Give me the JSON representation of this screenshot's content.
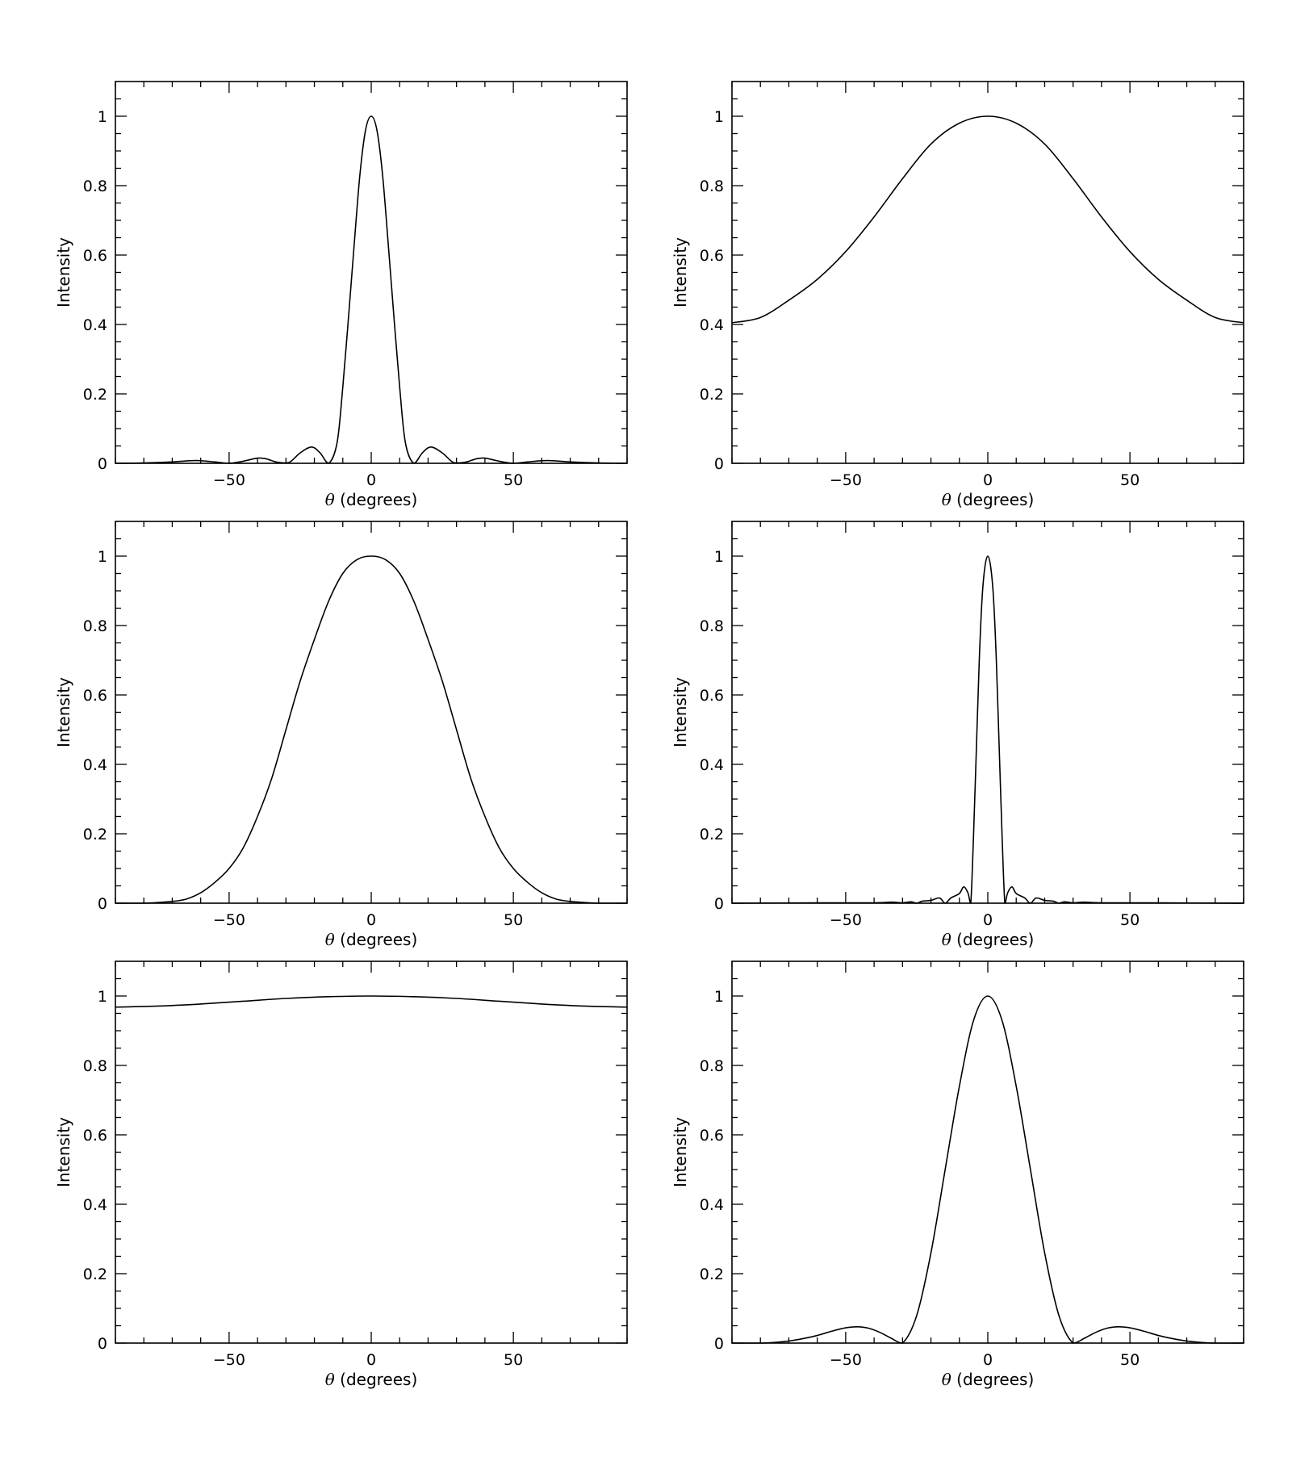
{
  "chart_data": [
    {
      "id": "panel-r1c1",
      "type": "line",
      "row": 1,
      "col": 1,
      "title": "",
      "xlabel_symbol": "θ",
      "xlabel": "(degrees)",
      "ylabel": "Intensity",
      "xlim": [
        -90,
        90
      ],
      "ylim": [
        0,
        1.1
      ],
      "xticks": [
        -50,
        0,
        50
      ],
      "xtick_labels": [
        "−50",
        "0",
        "50"
      ],
      "yticks": [
        0,
        0.2,
        0.4,
        0.6,
        0.8,
        1
      ],
      "ytick_labels": [
        "0",
        "0.2",
        "0.4",
        "0.6",
        "0.8",
        "1"
      ],
      "grid": false,
      "legend": false,
      "series": [
        {
          "x": [
            -90,
            -80,
            -70,
            -62,
            -55,
            -50,
            -45,
            -40,
            -37,
            -33,
            -29,
            -25,
            -21,
            -18,
            -15,
            -12,
            -10,
            -8,
            -6,
            -4,
            -2,
            0,
            2,
            4,
            6,
            8,
            10,
            12,
            15,
            18,
            21,
            25,
            29,
            33,
            37,
            40,
            45,
            50,
            55,
            62,
            70,
            80,
            90
          ],
          "y": [
            0,
            0.001,
            0.004,
            0.008,
            0.004,
            0,
            0.006,
            0.015,
            0.013,
            0.003,
            0.002,
            0.03,
            0.047,
            0.03,
            0,
            0.06,
            0.22,
            0.42,
            0.63,
            0.83,
            0.96,
            1,
            0.96,
            0.83,
            0.63,
            0.42,
            0.22,
            0.06,
            0,
            0.03,
            0.047,
            0.03,
            0.002,
            0.003,
            0.013,
            0.015,
            0.006,
            0,
            0.004,
            0.008,
            0.004,
            0.001,
            0
          ]
        }
      ]
    },
    {
      "id": "panel-r1c2",
      "type": "line",
      "row": 1,
      "col": 2,
      "title": "",
      "xlabel_symbol": "θ",
      "xlabel": "(degrees)",
      "ylabel": "Intensity",
      "xlim": [
        -90,
        90
      ],
      "ylim": [
        0,
        1.1
      ],
      "xticks": [
        -50,
        0,
        50
      ],
      "xtick_labels": [
        "−50",
        "0",
        "50"
      ],
      "yticks": [
        0,
        0.2,
        0.4,
        0.6,
        0.8,
        1
      ],
      "ytick_labels": [
        "0",
        "0.2",
        "0.4",
        "0.6",
        "0.8",
        "1"
      ],
      "grid": false,
      "legend": false,
      "series": [
        {
          "x": [
            -90,
            -80,
            -70,
            -60,
            -50,
            -40,
            -30,
            -20,
            -10,
            0,
            10,
            20,
            30,
            40,
            50,
            60,
            70,
            80,
            90
          ],
          "y": [
            0.405,
            0.42,
            0.47,
            0.53,
            0.61,
            0.71,
            0.82,
            0.92,
            0.98,
            1,
            0.98,
            0.92,
            0.82,
            0.71,
            0.61,
            0.53,
            0.47,
            0.42,
            0.405
          ]
        }
      ]
    },
    {
      "id": "panel-r2c1",
      "type": "line",
      "row": 2,
      "col": 1,
      "title": "",
      "xlabel_symbol": "θ",
      "xlabel": "(degrees)",
      "ylabel": "Intensity",
      "xlim": [
        -90,
        90
      ],
      "ylim": [
        0,
        1.1
      ],
      "xticks": [
        -50,
        0,
        50
      ],
      "xtick_labels": [
        "−50",
        "0",
        "50"
      ],
      "yticks": [
        0,
        0.2,
        0.4,
        0.6,
        0.8,
        1
      ],
      "ytick_labels": [
        "0",
        "0.2",
        "0.4",
        "0.6",
        "0.8",
        "1"
      ],
      "grid": false,
      "legend": false,
      "series": [
        {
          "x": [
            -90,
            -80,
            -75,
            -70,
            -65,
            -60,
            -55,
            -50,
            -45,
            -40,
            -35,
            -30,
            -25,
            -20,
            -15,
            -10,
            -5,
            0,
            5,
            10,
            15,
            20,
            25,
            30,
            35,
            40,
            45,
            50,
            55,
            60,
            65,
            70,
            75,
            80,
            90
          ],
          "y": [
            0,
            0,
            0.002,
            0.005,
            0.012,
            0.03,
            0.06,
            0.1,
            0.16,
            0.25,
            0.36,
            0.5,
            0.64,
            0.76,
            0.87,
            0.95,
            0.99,
            1,
            0.99,
            0.95,
            0.87,
            0.76,
            0.64,
            0.5,
            0.36,
            0.25,
            0.16,
            0.1,
            0.06,
            0.03,
            0.012,
            0.005,
            0.002,
            0,
            0
          ]
        }
      ]
    },
    {
      "id": "panel-r2c2",
      "type": "line",
      "row": 2,
      "col": 2,
      "title": "",
      "xlabel_symbol": "θ",
      "xlabel": "(degrees)",
      "ylabel": "Intensity",
      "xlim": [
        -90,
        90
      ],
      "ylim": [
        0,
        1.1
      ],
      "xticks": [
        -50,
        0,
        50
      ],
      "xtick_labels": [
        "−50",
        "0",
        "50"
      ],
      "yticks": [
        0,
        0.2,
        0.4,
        0.6,
        0.8,
        1
      ],
      "ytick_labels": [
        "0",
        "0.2",
        "0.4",
        "0.6",
        "0.8",
        "1"
      ],
      "grid": false,
      "legend": false,
      "series": [
        {
          "x": [
            -90,
            -60,
            -40,
            -34,
            -30,
            -27,
            -25,
            -23,
            -20,
            -17,
            -15,
            -13,
            -10,
            -8.5,
            -7,
            -6,
            -5,
            -4,
            -3,
            -2,
            -1,
            0,
            1,
            2,
            3,
            4,
            5,
            6,
            7,
            8.5,
            10,
            13,
            15,
            17,
            20,
            23,
            25,
            27,
            30,
            34,
            40,
            60,
            90
          ],
          "y": [
            0,
            0.001,
            0.001,
            0.003,
            0.001,
            0.004,
            0,
            0.006,
            0.008,
            0.015,
            0,
            0.015,
            0.028,
            0.047,
            0.03,
            0,
            0.2,
            0.45,
            0.7,
            0.88,
            0.97,
            1,
            0.97,
            0.88,
            0.7,
            0.45,
            0.2,
            0,
            0.03,
            0.047,
            0.028,
            0.015,
            0,
            0.015,
            0.008,
            0.006,
            0,
            0.004,
            0.001,
            0.003,
            0.001,
            0.001,
            0
          ]
        }
      ]
    },
    {
      "id": "panel-r3c1",
      "type": "line",
      "row": 3,
      "col": 1,
      "title": "",
      "xlabel_symbol": "θ",
      "xlabel": "(degrees)",
      "ylabel": "Intensity",
      "xlim": [
        -90,
        90
      ],
      "ylim": [
        0,
        1.1
      ],
      "xticks": [
        -50,
        0,
        50
      ],
      "xtick_labels": [
        "−50",
        "0",
        "50"
      ],
      "yticks": [
        0,
        0.2,
        0.4,
        0.6,
        0.8,
        1
      ],
      "ytick_labels": [
        "0",
        "0.2",
        "0.4",
        "0.6",
        "0.8",
        "1"
      ],
      "grid": false,
      "legend": false,
      "series": [
        {
          "x": [
            -90,
            -75,
            -60,
            -45,
            -30,
            -15,
            0,
            15,
            30,
            45,
            60,
            75,
            90
          ],
          "y": [
            0.968,
            0.971,
            0.977,
            0.985,
            0.993,
            0.998,
            1,
            0.998,
            0.993,
            0.985,
            0.977,
            0.971,
            0.968
          ]
        }
      ]
    },
    {
      "id": "panel-r3c2",
      "type": "line",
      "row": 3,
      "col": 2,
      "title": "",
      "xlabel_symbol": "θ",
      "xlabel": "(degrees)",
      "ylabel": "Intensity",
      "xlim": [
        -90,
        90
      ],
      "ylim": [
        0,
        1.1
      ],
      "xticks": [
        -50,
        0,
        50
      ],
      "xtick_labels": [
        "−50",
        "0",
        "50"
      ],
      "yticks": [
        0,
        0.2,
        0.4,
        0.6,
        0.8,
        1
      ],
      "ytick_labels": [
        "0",
        "0.2",
        "0.4",
        "0.6",
        "0.8",
        "1"
      ],
      "grid": false,
      "legend": false,
      "series": [
        {
          "x": [
            -90,
            -80,
            -75,
            -70,
            -65,
            -60,
            -55,
            -50,
            -46,
            -42,
            -38,
            -34,
            -30,
            -25,
            -20,
            -15,
            -10,
            -5,
            0,
            5,
            10,
            15,
            20,
            25,
            30,
            34,
            38,
            42,
            46,
            50,
            55,
            60,
            65,
            70,
            75,
            80,
            90
          ],
          "y": [
            0,
            0,
            0.002,
            0.006,
            0.013,
            0.022,
            0.034,
            0.044,
            0.047,
            0.043,
            0.031,
            0.014,
            0,
            0.08,
            0.26,
            0.5,
            0.74,
            0.93,
            1,
            0.93,
            0.74,
            0.5,
            0.26,
            0.08,
            0,
            0.014,
            0.031,
            0.043,
            0.047,
            0.044,
            0.034,
            0.022,
            0.013,
            0.006,
            0.002,
            0,
            0
          ]
        }
      ]
    }
  ]
}
